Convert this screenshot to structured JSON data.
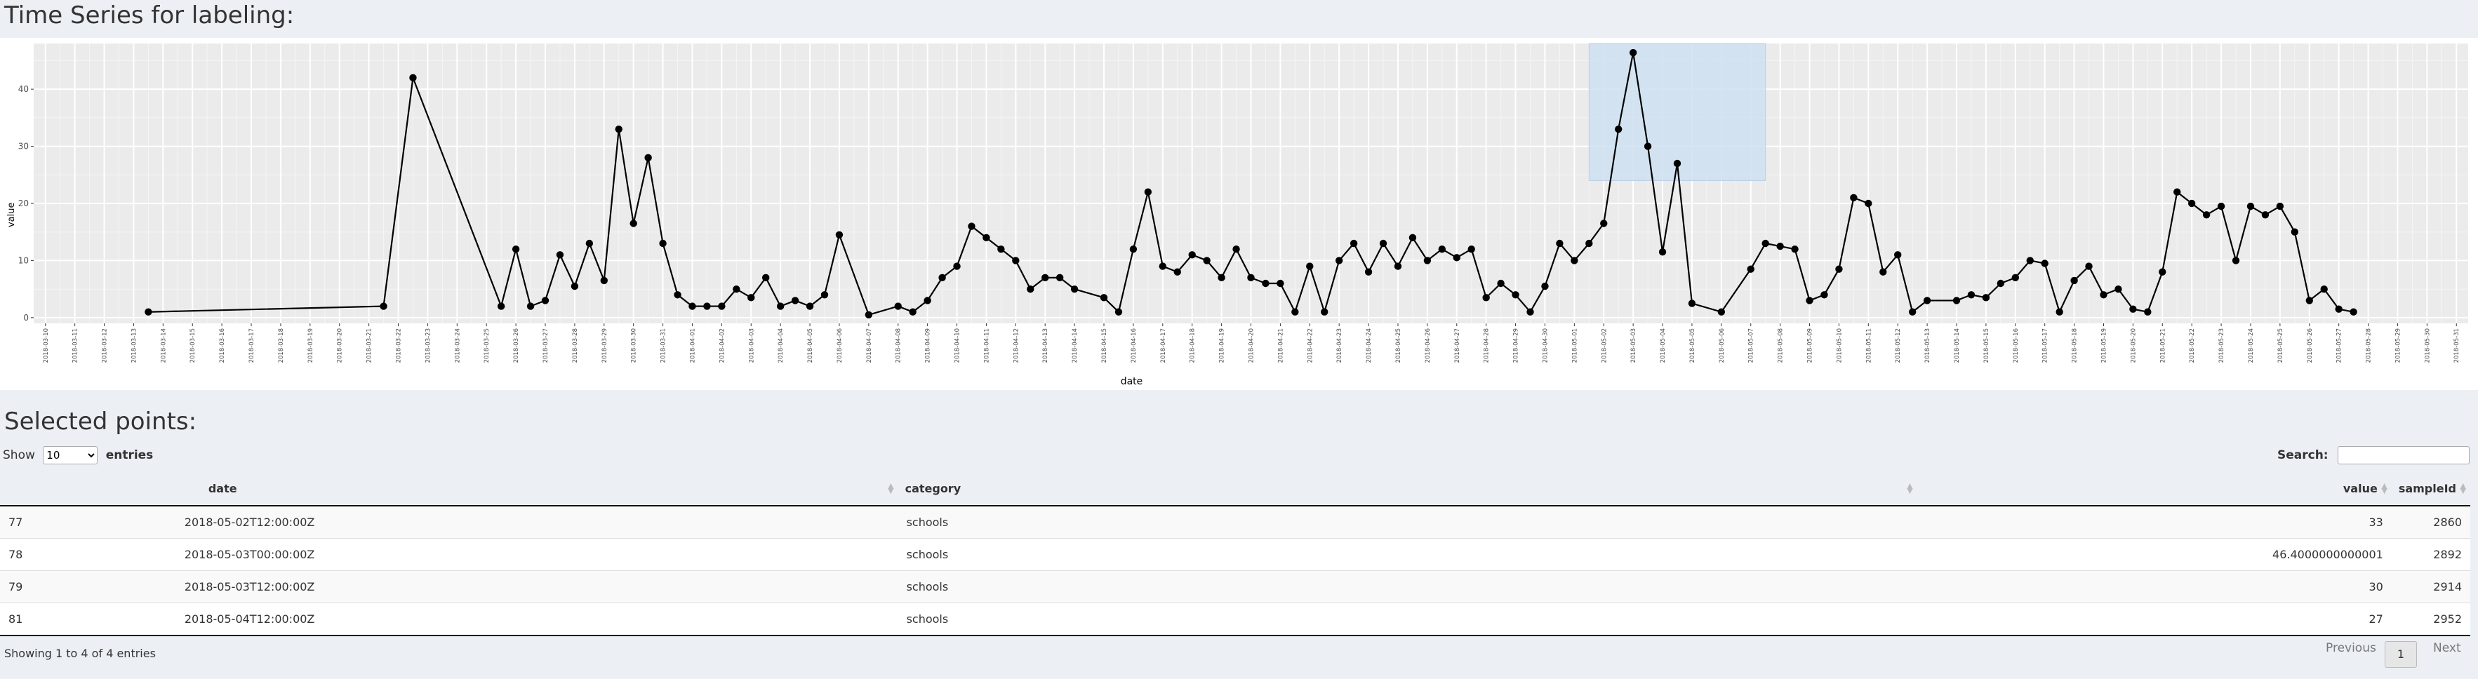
{
  "page": {
    "title": "Time Series for labeling:",
    "selected_title": "Selected points:"
  },
  "chart_data": {
    "type": "line",
    "xlabel": "date",
    "ylabel": "value",
    "ylim": [
      -1,
      48
    ],
    "yticks": [
      0,
      10,
      20,
      30,
      40
    ],
    "grid": true,
    "background": "#ebebeb",
    "line_color": "#000000",
    "brush_color": "#cfe0f1",
    "date_ticks": [
      "2018-03-10",
      "2018-03-11",
      "2018-03-12",
      "2018-03-13",
      "2018-03-14",
      "2018-03-15",
      "2018-03-16",
      "2018-03-17",
      "2018-03-18",
      "2018-03-19",
      "2018-03-20",
      "2018-03-21",
      "2018-03-22",
      "2018-03-23",
      "2018-03-24",
      "2018-03-25",
      "2018-03-26",
      "2018-03-27",
      "2018-03-28",
      "2018-03-29",
      "2018-03-30",
      "2018-03-31",
      "2018-04-01",
      "2018-04-02",
      "2018-04-03",
      "2018-04-04",
      "2018-04-05",
      "2018-04-06",
      "2018-04-07",
      "2018-04-08",
      "2018-04-09",
      "2018-04-10",
      "2018-04-11",
      "2018-04-12",
      "2018-04-13",
      "2018-04-14",
      "2018-04-15",
      "2018-04-16",
      "2018-04-17",
      "2018-04-18",
      "2018-04-19",
      "2018-04-20",
      "2018-04-21",
      "2018-04-22",
      "2018-04-23",
      "2018-04-24",
      "2018-04-25",
      "2018-04-26",
      "2018-04-27",
      "2018-04-28",
      "2018-04-29",
      "2018-04-30",
      "2018-05-01",
      "2018-05-02",
      "2018-05-03",
      "2018-05-04",
      "2018-05-05",
      "2018-05-06",
      "2018-05-07",
      "2018-05-08",
      "2018-05-09",
      "2018-05-10",
      "2018-05-11",
      "2018-05-12",
      "2018-05-13",
      "2018-05-14",
      "2018-05-15",
      "2018-05-16",
      "2018-05-17",
      "2018-05-18",
      "2018-05-19",
      "2018-05-20",
      "2018-05-21",
      "2018-05-22",
      "2018-05-23",
      "2018-05-24",
      "2018-05-25",
      "2018-05-26",
      "2018-05-27",
      "2018-05-28",
      "2018-05-29",
      "2018-05-30",
      "2018-05-31"
    ],
    "brush": {
      "x_start": "2018-05-01T12:00",
      "x_end": "2018-05-07T12:00",
      "y_bottom": 24,
      "y_top": 48
    },
    "points": [
      {
        "x": "2018-03-13T12:00",
        "y": 1
      },
      {
        "x": "2018-03-21T12:00",
        "y": 2
      },
      {
        "x": "2018-03-22T12:00",
        "y": 42
      },
      {
        "x": "2018-03-25T12:00",
        "y": 2
      },
      {
        "x": "2018-03-26T00:00",
        "y": 12
      },
      {
        "x": "2018-03-26T12:00",
        "y": 2
      },
      {
        "x": "2018-03-27T00:00",
        "y": 3
      },
      {
        "x": "2018-03-27T12:00",
        "y": 11
      },
      {
        "x": "2018-03-28T00:00",
        "y": 5.5
      },
      {
        "x": "2018-03-28T12:00",
        "y": 13
      },
      {
        "x": "2018-03-29T00:00",
        "y": 6.5
      },
      {
        "x": "2018-03-29T12:00",
        "y": 33
      },
      {
        "x": "2018-03-30T00:00",
        "y": 16.5
      },
      {
        "x": "2018-03-30T12:00",
        "y": 28
      },
      {
        "x": "2018-03-31T00:00",
        "y": 13
      },
      {
        "x": "2018-03-31T12:00",
        "y": 4
      },
      {
        "x": "2018-04-01T00:00",
        "y": 2
      },
      {
        "x": "2018-04-01T12:00",
        "y": 2
      },
      {
        "x": "2018-04-02T00:00",
        "y": 2
      },
      {
        "x": "2018-04-02T12:00",
        "y": 5
      },
      {
        "x": "2018-04-03T00:00",
        "y": 3.5
      },
      {
        "x": "2018-04-03T12:00",
        "y": 7
      },
      {
        "x": "2018-04-04T00:00",
        "y": 2
      },
      {
        "x": "2018-04-04T12:00",
        "y": 3
      },
      {
        "x": "2018-04-05T00:00",
        "y": 2
      },
      {
        "x": "2018-04-05T12:00",
        "y": 4
      },
      {
        "x": "2018-04-06T00:00",
        "y": 14.5
      },
      {
        "x": "2018-04-07T00:00",
        "y": 0.5
      },
      {
        "x": "2018-04-08T00:00",
        "y": 2
      },
      {
        "x": "2018-04-08T12:00",
        "y": 1
      },
      {
        "x": "2018-04-09T00:00",
        "y": 3
      },
      {
        "x": "2018-04-09T12:00",
        "y": 7
      },
      {
        "x": "2018-04-10T00:00",
        "y": 9
      },
      {
        "x": "2018-04-10T12:00",
        "y": 16
      },
      {
        "x": "2018-04-11T00:00",
        "y": 14
      },
      {
        "x": "2018-04-11T12:00",
        "y": 12
      },
      {
        "x": "2018-04-12T00:00",
        "y": 10
      },
      {
        "x": "2018-04-12T12:00",
        "y": 5
      },
      {
        "x": "2018-04-13T00:00",
        "y": 7
      },
      {
        "x": "2018-04-13T12:00",
        "y": 7
      },
      {
        "x": "2018-04-14T00:00",
        "y": 5
      },
      {
        "x": "2018-04-15T00:00",
        "y": 3.5
      },
      {
        "x": "2018-04-15T12:00",
        "y": 1
      },
      {
        "x": "2018-04-16T00:00",
        "y": 12
      },
      {
        "x": "2018-04-16T12:00",
        "y": 22
      },
      {
        "x": "2018-04-17T00:00",
        "y": 9
      },
      {
        "x": "2018-04-17T12:00",
        "y": 8
      },
      {
        "x": "2018-04-18T00:00",
        "y": 11
      },
      {
        "x": "2018-04-18T12:00",
        "y": 10
      },
      {
        "x": "2018-04-19T00:00",
        "y": 7
      },
      {
        "x": "2018-04-19T12:00",
        "y": 12
      },
      {
        "x": "2018-04-20T00:00",
        "y": 7
      },
      {
        "x": "2018-04-20T12:00",
        "y": 6
      },
      {
        "x": "2018-04-21T00:00",
        "y": 6
      },
      {
        "x": "2018-04-21T12:00",
        "y": 1
      },
      {
        "x": "2018-04-22T00:00",
        "y": 9
      },
      {
        "x": "2018-04-22T12:00",
        "y": 1
      },
      {
        "x": "2018-04-23T00:00",
        "y": 10
      },
      {
        "x": "2018-04-23T12:00",
        "y": 13
      },
      {
        "x": "2018-04-24T00:00",
        "y": 8
      },
      {
        "x": "2018-04-24T12:00",
        "y": 13
      },
      {
        "x": "2018-04-25T00:00",
        "y": 9
      },
      {
        "x": "2018-04-25T12:00",
        "y": 14
      },
      {
        "x": "2018-04-26T00:00",
        "y": 10
      },
      {
        "x": "2018-04-26T12:00",
        "y": 12
      },
      {
        "x": "2018-04-27T00:00",
        "y": 10.5
      },
      {
        "x": "2018-04-27T12:00",
        "y": 12
      },
      {
        "x": "2018-04-28T00:00",
        "y": 3.5
      },
      {
        "x": "2018-04-28T12:00",
        "y": 6
      },
      {
        "x": "2018-04-29T00:00",
        "y": 4
      },
      {
        "x": "2018-04-29T12:00",
        "y": 1
      },
      {
        "x": "2018-04-30T00:00",
        "y": 5.5
      },
      {
        "x": "2018-04-30T12:00",
        "y": 13
      },
      {
        "x": "2018-05-01T00:00",
        "y": 10
      },
      {
        "x": "2018-05-01T12:00",
        "y": 13
      },
      {
        "x": "2018-05-02T00:00",
        "y": 16.5
      },
      {
        "x": "2018-05-02T12:00",
        "y": 33
      },
      {
        "x": "2018-05-03T00:00",
        "y": 46.4
      },
      {
        "x": "2018-05-03T12:00",
        "y": 30
      },
      {
        "x": "2018-05-04T00:00",
        "y": 11.5
      },
      {
        "x": "2018-05-04T12:00",
        "y": 27
      },
      {
        "x": "2018-05-05T00:00",
        "y": 2.5
      },
      {
        "x": "2018-05-06T00:00",
        "y": 1
      },
      {
        "x": "2018-05-07T00:00",
        "y": 8.5
      },
      {
        "x": "2018-05-07T12:00",
        "y": 13
      },
      {
        "x": "2018-05-08T00:00",
        "y": 12.5
      },
      {
        "x": "2018-05-08T12:00",
        "y": 12
      },
      {
        "x": "2018-05-09T00:00",
        "y": 3
      },
      {
        "x": "2018-05-09T12:00",
        "y": 4
      },
      {
        "x": "2018-05-10T00:00",
        "y": 8.5
      },
      {
        "x": "2018-05-10T12:00",
        "y": 21
      },
      {
        "x": "2018-05-11T00:00",
        "y": 20
      },
      {
        "x": "2018-05-11T12:00",
        "y": 8
      },
      {
        "x": "2018-05-12T00:00",
        "y": 11
      },
      {
        "x": "2018-05-12T12:00",
        "y": 1
      },
      {
        "x": "2018-05-13T00:00",
        "y": 3
      },
      {
        "x": "2018-05-14T00:00",
        "y": 3
      },
      {
        "x": "2018-05-14T12:00",
        "y": 4
      },
      {
        "x": "2018-05-15T00:00",
        "y": 3.5
      },
      {
        "x": "2018-05-15T12:00",
        "y": 6
      },
      {
        "x": "2018-05-16T00:00",
        "y": 7
      },
      {
        "x": "2018-05-16T12:00",
        "y": 10
      },
      {
        "x": "2018-05-17T00:00",
        "y": 9.5
      },
      {
        "x": "2018-05-17T12:00",
        "y": 1
      },
      {
        "x": "2018-05-18T00:00",
        "y": 6.5
      },
      {
        "x": "2018-05-18T12:00",
        "y": 9
      },
      {
        "x": "2018-05-19T00:00",
        "y": 4
      },
      {
        "x": "2018-05-19T12:00",
        "y": 5
      },
      {
        "x": "2018-05-20T00:00",
        "y": 1.5
      },
      {
        "x": "2018-05-20T12:00",
        "y": 1
      },
      {
        "x": "2018-05-21T00:00",
        "y": 8
      },
      {
        "x": "2018-05-21T12:00",
        "y": 22
      },
      {
        "x": "2018-05-22T00:00",
        "y": 20
      },
      {
        "x": "2018-05-22T12:00",
        "y": 18
      },
      {
        "x": "2018-05-23T00:00",
        "y": 19.5
      },
      {
        "x": "2018-05-23T12:00",
        "y": 10
      },
      {
        "x": "2018-05-24T00:00",
        "y": 19.5
      },
      {
        "x": "2018-05-24T12:00",
        "y": 18
      },
      {
        "x": "2018-05-25T00:00",
        "y": 19.5
      },
      {
        "x": "2018-05-25T12:00",
        "y": 15
      },
      {
        "x": "2018-05-26T00:00",
        "y": 3
      },
      {
        "x": "2018-05-26T12:00",
        "y": 5
      },
      {
        "x": "2018-05-27T00:00",
        "y": 1.5
      },
      {
        "x": "2018-05-27T12:00",
        "y": 1
      }
    ]
  },
  "table": {
    "show_label": "Show",
    "length_value": "10",
    "length_options": [
      "10"
    ],
    "entries_label": "entries",
    "search_label": "Search:",
    "search_value": "",
    "columns": {
      "date": "date",
      "category": "category",
      "value": "value",
      "sampleId": "sampleId"
    },
    "rows": [
      {
        "idx": "77",
        "date": "2018-05-02T12:00:00Z",
        "category": "schools",
        "value": "33",
        "sampleId": "2860"
      },
      {
        "idx": "78",
        "date": "2018-05-03T00:00:00Z",
        "category": "schools",
        "value": "46.4000000000001",
        "sampleId": "2892"
      },
      {
        "idx": "79",
        "date": "2018-05-03T12:00:00Z",
        "category": "schools",
        "value": "30",
        "sampleId": "2914"
      },
      {
        "idx": "81",
        "date": "2018-05-04T12:00:00Z",
        "category": "schools",
        "value": "27",
        "sampleId": "2952"
      }
    ],
    "info": "Showing 1 to 4 of 4 entries",
    "pagination": {
      "previous": "Previous",
      "current": "1",
      "next": "Next"
    }
  }
}
